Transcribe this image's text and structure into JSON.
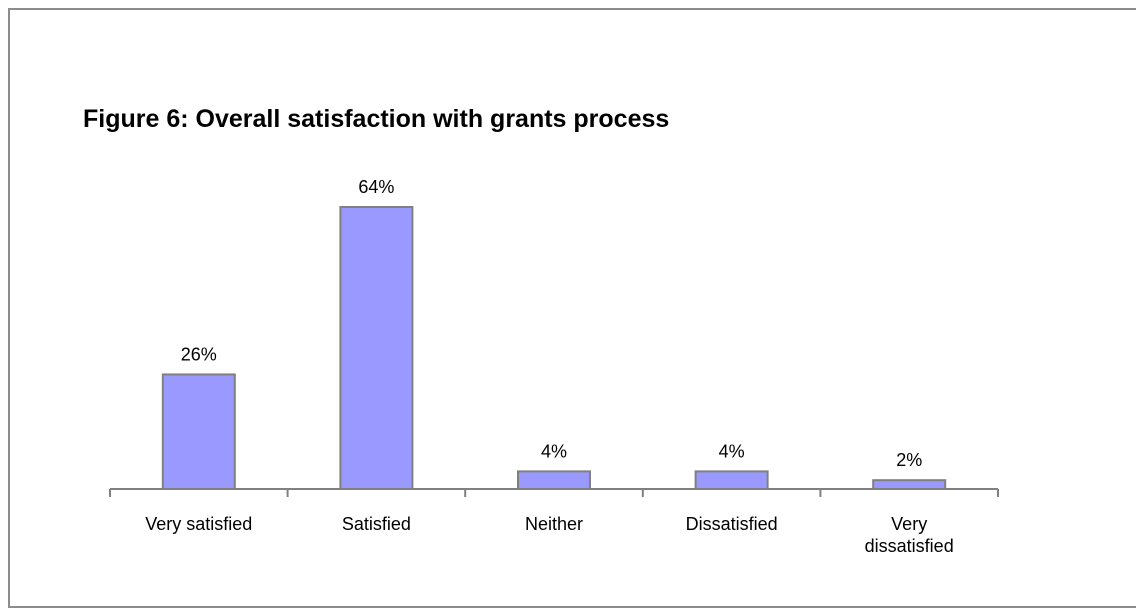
{
  "chart_data": {
    "type": "bar",
    "title": "Figure 6:  Overall satisfaction with grants process",
    "categories": [
      "Very satisfied",
      "Satisfied",
      "Neither",
      "Dissatisfied",
      "Very dissatisfied"
    ],
    "values": [
      26,
      64,
      4,
      4,
      2
    ],
    "value_labels": [
      "26%",
      "64%",
      "4%",
      "4%",
      "2%"
    ],
    "color": "#9999ff"
  }
}
